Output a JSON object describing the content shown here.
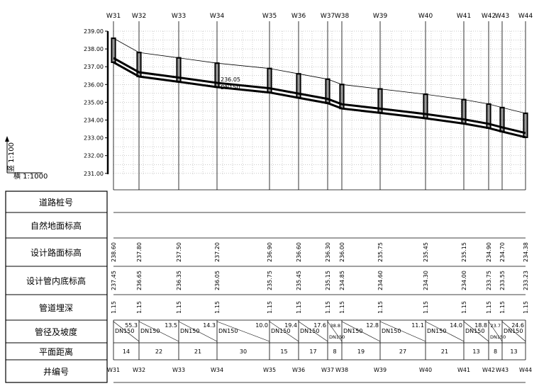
{
  "scale": {
    "vertical": "竖 1:100",
    "horizontal": "横 1:1000"
  },
  "elev_axis": {
    "min": 231.0,
    "max": 239.0,
    "ticks": [
      "239.00",
      "238.00",
      "237.00",
      "236.00",
      "235.00",
      "234.00",
      "233.00",
      "232.00",
      "231.00"
    ]
  },
  "row_labels": [
    "道路桩号",
    "自然地面标高",
    "设计路面标高",
    "设计管内底标高",
    "管道埋深",
    "管径及坡度",
    "平面距离",
    "井编号"
  ],
  "wells": [
    {
      "name": "W31",
      "ground": "238.60",
      "invert": "237.45",
      "depth": "1.15"
    },
    {
      "name": "W32",
      "ground": "237.80",
      "invert": "236.65",
      "depth": "1.15"
    },
    {
      "name": "W33",
      "ground": "237.50",
      "invert": "236.35",
      "depth": "1.15"
    },
    {
      "name": "W34",
      "ground": "237.20",
      "invert": "236.05",
      "depth": "1.15"
    },
    {
      "name": "W35",
      "ground": "236.90",
      "invert": "235.75",
      "depth": "1.15"
    },
    {
      "name": "W36",
      "ground": "236.60",
      "invert": "235.45",
      "depth": "1.15"
    },
    {
      "name": "W37",
      "ground": "236.30",
      "invert": "235.15",
      "depth": "1.15"
    },
    {
      "name": "W38",
      "ground": "236.00",
      "invert": "234.85",
      "depth": "1.15"
    },
    {
      "name": "W39",
      "ground": "235.75",
      "invert": "234.60",
      "depth": "1.15"
    },
    {
      "name": "W40",
      "ground": "235.45",
      "invert": "234.30",
      "depth": "1.15"
    },
    {
      "name": "W41",
      "ground": "235.15",
      "invert": "234.00",
      "depth": "1.15"
    },
    {
      "name": "W42",
      "ground": "234.90",
      "invert": "233.75",
      "depth": "1.15"
    },
    {
      "name": "W43",
      "ground": "234.70",
      "invert": "233.55",
      "depth": "1.15"
    },
    {
      "name": "W44",
      "ground": "234.38",
      "invert": "233.23",
      "depth": "1.15"
    }
  ],
  "segments": [
    {
      "dn": "DN150",
      "slope": "55.3",
      "dist": "14"
    },
    {
      "dn": "DN150",
      "slope": "13.5",
      "dist": "22"
    },
    {
      "dn": "DN150",
      "slope": "14.3",
      "dist": "21"
    },
    {
      "dn": "DN150",
      "slope": "10.0",
      "dist": "30"
    },
    {
      "dn": "DN150",
      "slope": "19.4",
      "dist": "15"
    },
    {
      "dn": "DN150",
      "slope": "17.6",
      "dist": "17"
    },
    {
      "dn": "DN150",
      "slope": "38.8",
      "dist": "8"
    },
    {
      "dn": "DN150",
      "slope": "12.8",
      "dist": "19"
    },
    {
      "dn": "DN150",
      "slope": "11.1",
      "dist": "27"
    },
    {
      "dn": "DN150",
      "slope": "14.0",
      "dist": "21"
    },
    {
      "dn": "DN150",
      "slope": "18.8",
      "dist": "13"
    },
    {
      "dn": "DN150",
      "slope": "23.7",
      "dist": "8"
    },
    {
      "dn": "DN150",
      "slope": "24.6",
      "dist": "13"
    }
  ],
  "annotation": {
    "level": "236.05",
    "dn": "DN150"
  }
}
